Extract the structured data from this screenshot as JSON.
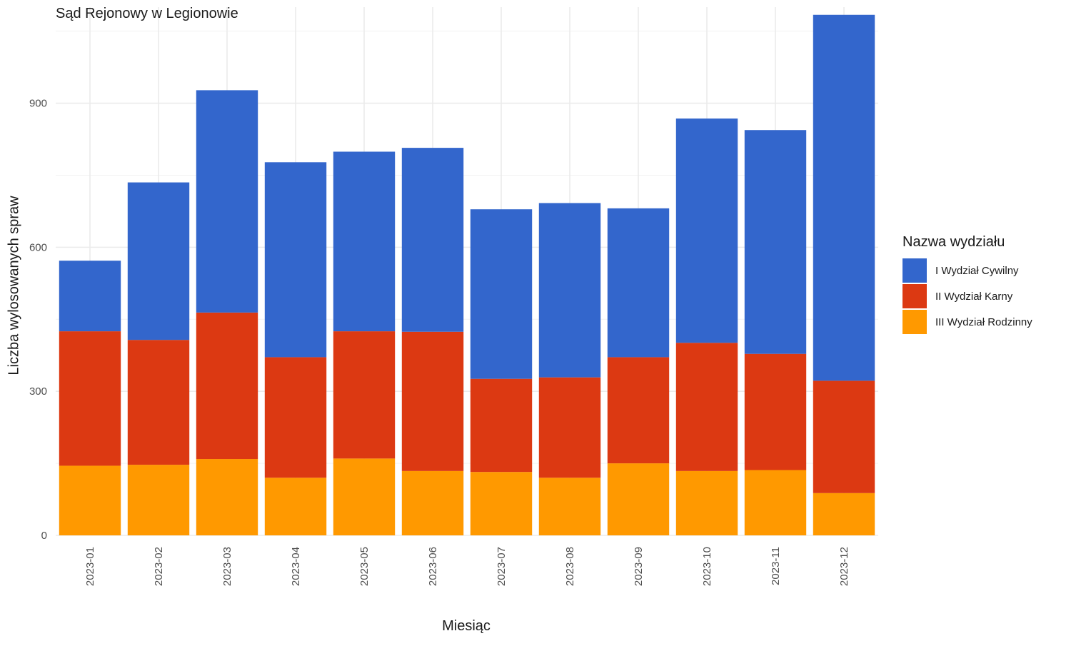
{
  "chart_data": {
    "type": "bar",
    "stacked": true,
    "title": "Sąd Rejonowy w Legionowie",
    "xlabel": "Miesiąc",
    "ylabel": "Liczba wylosowanych spraw",
    "ylim": [
      0,
      1100
    ],
    "yticks": [
      0,
      300,
      600,
      900
    ],
    "grid": true,
    "legend_title": "Nazwa wydziału",
    "legend_position": "right",
    "categories": [
      "2023-01",
      "2023-02",
      "2023-03",
      "2023-04",
      "2023-05",
      "2023-06",
      "2023-07",
      "2023-08",
      "2023-09",
      "2023-10",
      "2023-11",
      "2023-12"
    ],
    "series": [
      {
        "name": "III Wydział Rodzinny",
        "color": "#FF9900",
        "values": [
          145,
          147,
          159,
          120,
          160,
          134,
          132,
          120,
          150,
          134,
          136,
          88
        ]
      },
      {
        "name": "II Wydział Karny",
        "color": "#DC3912",
        "values": [
          280,
          260,
          305,
          251,
          265,
          290,
          194,
          209,
          221,
          267,
          242,
          234
        ]
      },
      {
        "name": "I Wydział Cywilny",
        "color": "#3366CC",
        "values": [
          147,
          328,
          463,
          406,
          374,
          383,
          353,
          363,
          310,
          467,
          466,
          762
        ]
      }
    ]
  }
}
